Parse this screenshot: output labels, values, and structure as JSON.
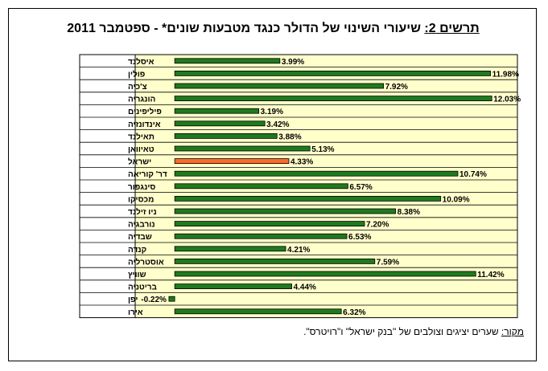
{
  "title_prefix": "תרשים 2:",
  "title_rest": " שיעורי השינוי של הדולר כנגד מטבעות שונים* - ספטמבר 2011",
  "source_prefix": "מקור:",
  "source_rest": " שערים יציגים וצולבים של \"בנק ישראל\" ו\"רויטרס\".",
  "colors": {
    "bar": "#1f7a1f",
    "highlight": "#ff6a2a",
    "plot_bg": "#ffffcc",
    "grid": "#000000"
  },
  "chart_data": {
    "type": "bar",
    "orientation": "horizontal",
    "xlim": [
      -1.5,
      13
    ],
    "grid": true,
    "highlight_category": "ישראל",
    "categories": [
      "איסלנד",
      "פולין",
      "צ'כיה",
      "הונגריה",
      "פיליפינים",
      "אינדונזיה",
      "תאילנד",
      "טאיוואן",
      "ישראל",
      "דר' קוריאה",
      "סינגפור",
      "מכסיקו",
      "ניו זילנד",
      "נורבגיה",
      "שבדיה",
      "קנדה",
      "אוסטרליה",
      "שוויץ",
      "בריטניה",
      "יפן",
      "אירו"
    ],
    "values": [
      3.99,
      11.98,
      7.92,
      12.03,
      3.19,
      3.42,
      3.88,
      5.13,
      4.33,
      10.74,
      6.57,
      10.09,
      8.38,
      7.2,
      6.53,
      4.21,
      7.59,
      11.42,
      4.44,
      -0.22,
      6.32
    ],
    "labels": [
      "3.99%",
      "11.98%",
      "7.92%",
      "12.03%",
      "3.19%",
      "3.42%",
      "3.88%",
      "5.13%",
      "4.33%",
      "10.74%",
      "6.57%",
      "10.09%",
      "8.38%",
      "7.20%",
      "6.53%",
      "4.21%",
      "7.59%",
      "11.42%",
      "4.44%",
      "-0.22%",
      "6.32%"
    ]
  }
}
